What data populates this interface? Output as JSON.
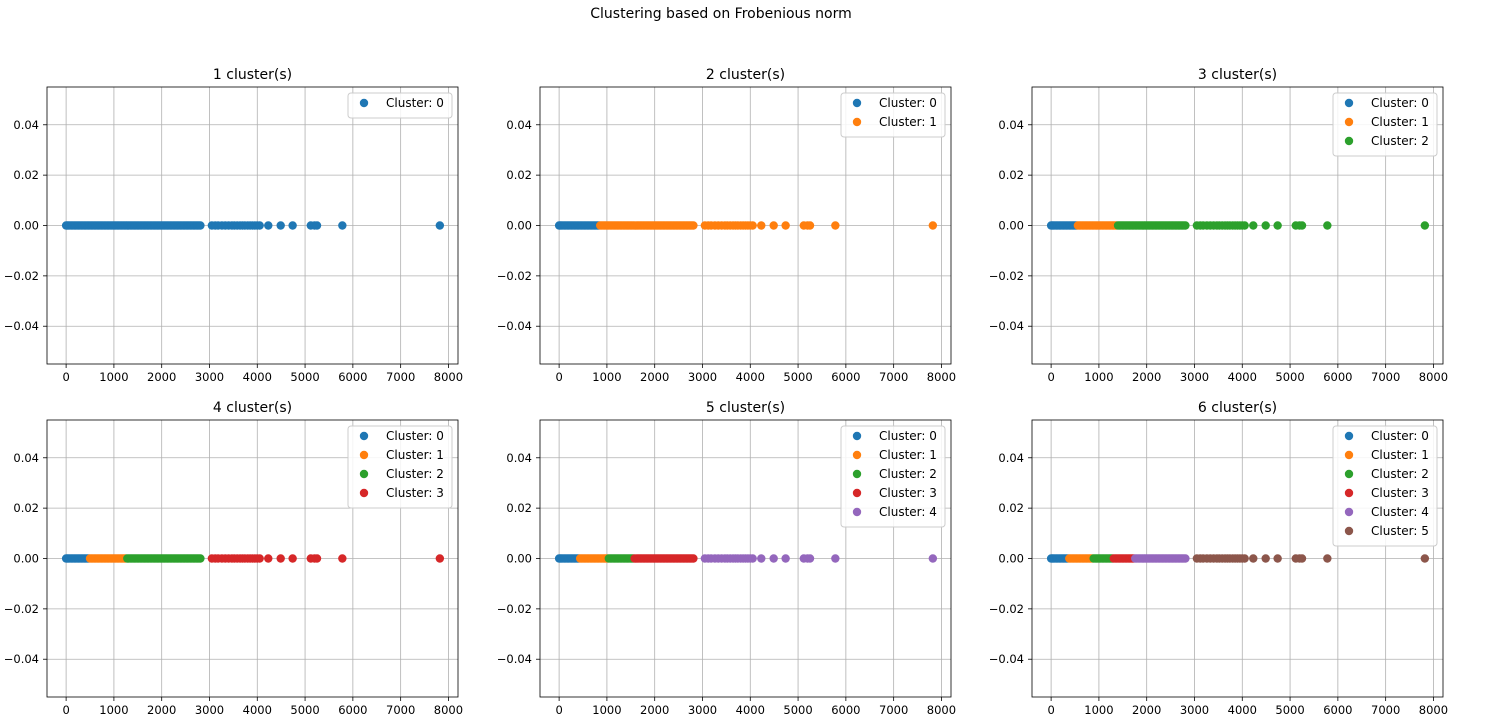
{
  "figure_title": "Clustering based on Frobenious norm",
  "colors": {
    "palette": [
      "#1f77b4",
      "#ff7f0e",
      "#2ca02c",
      "#d62728",
      "#9467bd",
      "#8c564b"
    ],
    "grid": "#b0b0b0",
    "axis": "#000000"
  },
  "x_points": [
    0,
    25,
    50,
    80,
    110,
    140,
    170,
    200,
    230,
    260,
    290,
    320,
    350,
    380,
    410,
    440,
    470,
    500,
    530,
    560,
    590,
    620,
    650,
    680,
    710,
    740,
    770,
    800,
    830,
    860,
    890,
    920,
    950,
    980,
    1010,
    1040,
    1070,
    1100,
    1130,
    1160,
    1190,
    1220,
    1250,
    1280,
    1310,
    1340,
    1370,
    1400,
    1430,
    1460,
    1490,
    1520,
    1550,
    1580,
    1610,
    1640,
    1670,
    1700,
    1730,
    1760,
    1790,
    1820,
    1850,
    1880,
    1910,
    1940,
    1970,
    2000,
    2030,
    2060,
    2090,
    2120,
    2150,
    2180,
    2210,
    2240,
    2270,
    2300,
    2330,
    2360,
    2390,
    2420,
    2450,
    2480,
    2510,
    2540,
    2570,
    2600,
    2630,
    2660,
    2690,
    2720,
    2750,
    2780,
    2810,
    3050,
    3120,
    3180,
    3260,
    3330,
    3400,
    3470,
    3520,
    3580,
    3640,
    3690,
    3740,
    3800,
    3850,
    3900,
    3950,
    4000,
    4050,
    4230,
    4490,
    4740,
    5120,
    5200,
    5250,
    5780,
    7820
  ],
  "chart_data": [
    {
      "type": "scatter",
      "title": "1 cluster(s)",
      "xlim": [
        -400,
        8200
      ],
      "ylim": [
        -0.055,
        0.055
      ],
      "xticks": [
        0,
        1000,
        2000,
        3000,
        4000,
        5000,
        6000,
        7000,
        8000
      ],
      "yticks": [
        0.04,
        0.02,
        0.0,
        -0.02,
        -0.04
      ],
      "ytick_labels": [
        "0.04",
        "0.02",
        "0.00",
        "−0.02",
        "−0.04"
      ],
      "grid": true,
      "legend_position": "upper right",
      "y_value": 0.0,
      "series": [
        {
          "name": "Cluster: 0",
          "range": [
            0,
            7820
          ]
        }
      ]
    },
    {
      "type": "scatter",
      "title": "2 cluster(s)",
      "xlim": [
        -400,
        8200
      ],
      "ylim": [
        -0.055,
        0.055
      ],
      "xticks": [
        0,
        1000,
        2000,
        3000,
        4000,
        5000,
        6000,
        7000,
        8000
      ],
      "yticks": [
        0.04,
        0.02,
        0.0,
        -0.02,
        -0.04
      ],
      "ytick_labels": [
        "0.04",
        "0.02",
        "0.00",
        "−0.02",
        "−0.04"
      ],
      "grid": true,
      "legend_position": "upper right",
      "y_value": 0.0,
      "series": [
        {
          "name": "Cluster: 0",
          "range": [
            0,
            830
          ]
        },
        {
          "name": "Cluster: 1",
          "range": [
            860,
            7820
          ]
        }
      ]
    },
    {
      "type": "scatter",
      "title": "3 cluster(s)",
      "xlim": [
        -400,
        8200
      ],
      "ylim": [
        -0.055,
        0.055
      ],
      "xticks": [
        0,
        1000,
        2000,
        3000,
        4000,
        5000,
        6000,
        7000,
        8000
      ],
      "yticks": [
        0.04,
        0.02,
        0.0,
        -0.02,
        -0.04
      ],
      "ytick_labels": [
        "0.04",
        "0.02",
        "0.00",
        "−0.02",
        "−0.04"
      ],
      "grid": true,
      "legend_position": "upper right",
      "y_value": 0.0,
      "series": [
        {
          "name": "Cluster: 0",
          "range": [
            0,
            530
          ]
        },
        {
          "name": "Cluster: 1",
          "range": [
            560,
            1370
          ]
        },
        {
          "name": "Cluster: 2",
          "range": [
            1400,
            7820
          ]
        }
      ]
    },
    {
      "type": "scatter",
      "title": "4 cluster(s)",
      "xlim": [
        -400,
        8200
      ],
      "ylim": [
        -0.055,
        0.055
      ],
      "xticks": [
        0,
        1000,
        2000,
        3000,
        4000,
        5000,
        6000,
        7000,
        8000
      ],
      "yticks": [
        0.04,
        0.02,
        0.0,
        -0.02,
        -0.04
      ],
      "ytick_labels": [
        "0.04",
        "0.02",
        "0.00",
        "−0.02",
        "−0.04"
      ],
      "grid": true,
      "legend_position": "upper right",
      "y_value": 0.0,
      "series": [
        {
          "name": "Cluster: 0",
          "range": [
            0,
            470
          ]
        },
        {
          "name": "Cluster: 1",
          "range": [
            500,
            1250
          ]
        },
        {
          "name": "Cluster: 2",
          "range": [
            1280,
            2810
          ]
        },
        {
          "name": "Cluster: 3",
          "range": [
            3050,
            7820
          ]
        }
      ]
    },
    {
      "type": "scatter",
      "title": "5 cluster(s)",
      "xlim": [
        -400,
        8200
      ],
      "ylim": [
        -0.055,
        0.055
      ],
      "xticks": [
        0,
        1000,
        2000,
        3000,
        4000,
        5000,
        6000,
        7000,
        8000
      ],
      "yticks": [
        0.04,
        0.02,
        0.0,
        -0.02,
        -0.04
      ],
      "ytick_labels": [
        "0.04",
        "0.02",
        "0.00",
        "−0.02",
        "−0.04"
      ],
      "grid": true,
      "legend_position": "upper right",
      "y_value": 0.0,
      "series": [
        {
          "name": "Cluster: 0",
          "range": [
            0,
            410
          ]
        },
        {
          "name": "Cluster: 1",
          "range": [
            440,
            1010
          ]
        },
        {
          "name": "Cluster: 2",
          "range": [
            1040,
            1550
          ]
        },
        {
          "name": "Cluster: 3",
          "range": [
            1580,
            2810
          ]
        },
        {
          "name": "Cluster: 4",
          "range": [
            3050,
            7820
          ]
        }
      ]
    },
    {
      "type": "scatter",
      "title": "6 cluster(s)",
      "xlim": [
        -400,
        8200
      ],
      "ylim": [
        -0.055,
        0.055
      ],
      "xticks": [
        0,
        1000,
        2000,
        3000,
        4000,
        5000,
        6000,
        7000,
        8000
      ],
      "yticks": [
        0.04,
        0.02,
        0.0,
        -0.02,
        -0.04
      ],
      "ytick_labels": [
        "0.04",
        "0.02",
        "0.00",
        "−0.02",
        "−0.04"
      ],
      "grid": true,
      "legend_position": "upper right",
      "y_value": 0.0,
      "series": [
        {
          "name": "Cluster: 0",
          "range": [
            0,
            350
          ]
        },
        {
          "name": "Cluster: 1",
          "range": [
            380,
            860
          ]
        },
        {
          "name": "Cluster: 2",
          "range": [
            890,
            1280
          ]
        },
        {
          "name": "Cluster: 3",
          "range": [
            1310,
            1730
          ]
        },
        {
          "name": "Cluster: 4",
          "range": [
            1760,
            2810
          ]
        },
        {
          "name": "Cluster: 5",
          "range": [
            3050,
            7820
          ]
        }
      ]
    }
  ]
}
